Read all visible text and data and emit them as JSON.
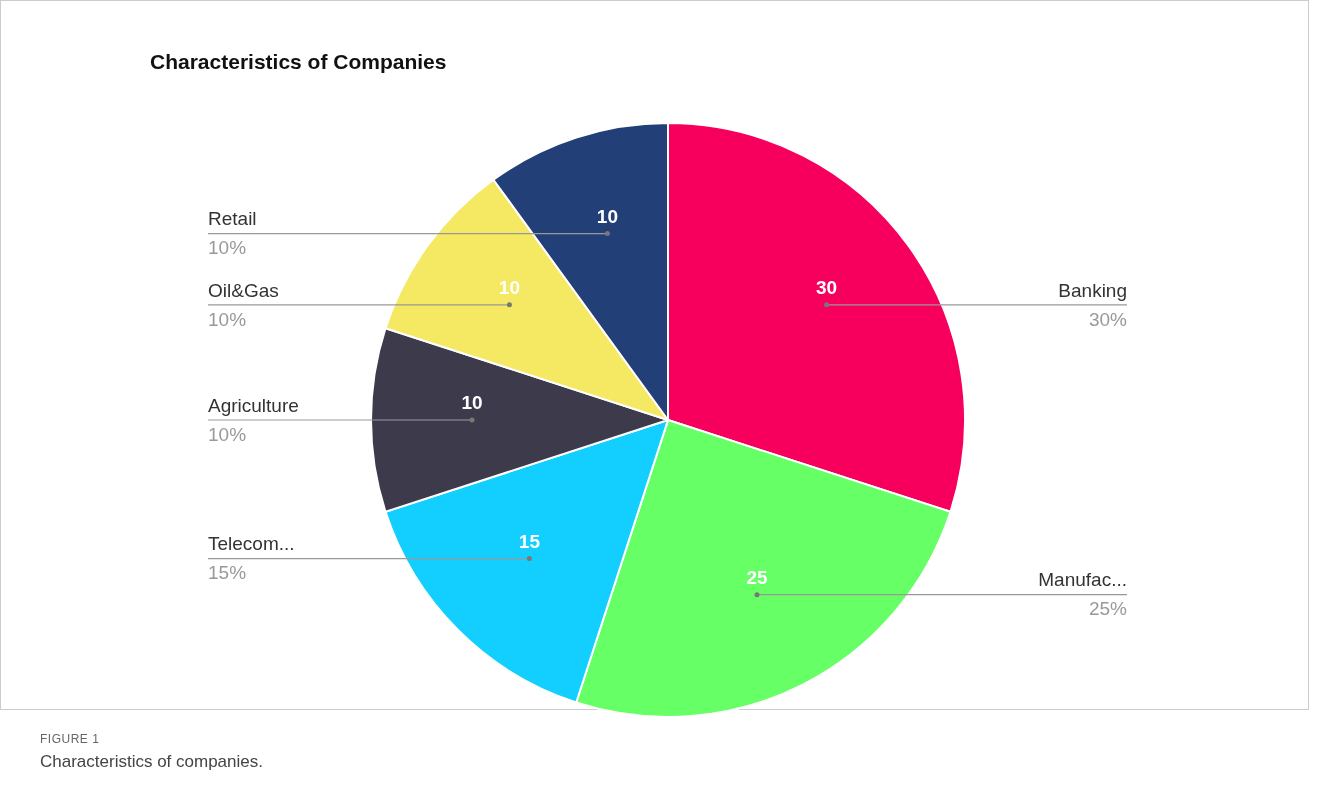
{
  "chart_data": {
    "type": "pie",
    "title": "Characteristics of Companies",
    "categories": [
      "Banking",
      "Manufac...",
      "Telecom...",
      "Agriculture",
      "Oil&Gas",
      "Retail"
    ],
    "values": [
      30,
      25,
      15,
      10,
      10,
      10
    ],
    "colors": [
      "#f7005d",
      "#66ff66",
      "#13cfff",
      "#3d3a4b",
      "#f5e863",
      "#233f78"
    ],
    "data_labels": true,
    "legend": false,
    "annotations": [
      "FIGURE 1",
      "Characteristics of companies.",
      {
        "text": "30%",
        "x": "Banking"
      },
      {
        "text": "25%",
        "x": "Manufac..."
      },
      {
        "text": "15%",
        "x": "Telecom..."
      },
      {
        "text": "10%",
        "x": "Agriculture"
      },
      {
        "text": "10%",
        "x": "Oil&Gas"
      },
      {
        "text": "10%",
        "x": "Retail"
      }
    ]
  }
}
